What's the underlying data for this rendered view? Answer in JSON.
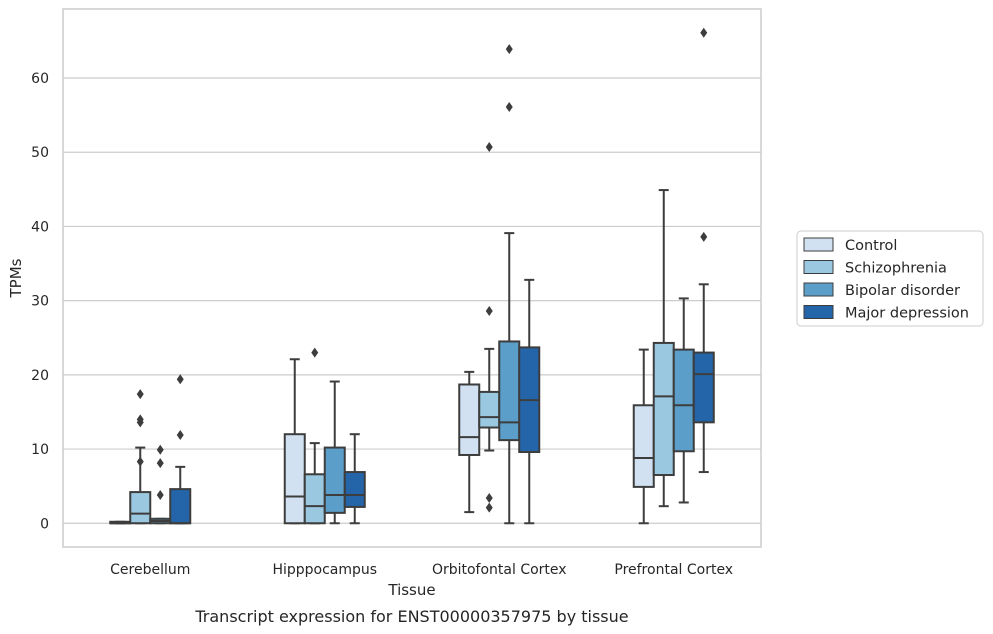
{
  "chart_data": {
    "type": "box",
    "title": "",
    "caption": "Transcript expression for ENST00000357975 by tissue",
    "xlabel": "Tissue",
    "ylabel": "TPMs",
    "ylim": [
      -3.2,
      69.3
    ],
    "yticks": [
      0,
      10,
      20,
      30,
      40,
      50,
      60
    ],
    "grid": true,
    "legend_position": "right",
    "categories": [
      "Cerebellum",
      "Hipppocampus",
      "Orbitofontal Cortex",
      "Prefrontal Cortex"
    ],
    "series": [
      {
        "name": "Control",
        "color": "#d1e1f1",
        "boxes": [
          {
            "whislo": 0,
            "q1": 0,
            "med": 0,
            "q3": 0.2,
            "whishi": 0.2,
            "fliers": []
          },
          {
            "whislo": 0,
            "q1": 0,
            "med": 3.6,
            "q3": 12.0,
            "whishi": 22.1,
            "fliers": []
          },
          {
            "whislo": 1.5,
            "q1": 9.2,
            "med": 11.6,
            "q3": 18.7,
            "whishi": 20.4,
            "fliers": []
          },
          {
            "whislo": 0,
            "q1": 4.9,
            "med": 8.8,
            "q3": 15.9,
            "whishi": 23.4,
            "fliers": []
          }
        ]
      },
      {
        "name": "Schizophrenia",
        "color": "#9ac8e0",
        "boxes": [
          {
            "whislo": 0,
            "q1": 0,
            "med": 1.3,
            "q3": 4.2,
            "whishi": 10.2,
            "fliers": [
              13.6,
              14.0,
              17.4,
              8.3
            ]
          },
          {
            "whislo": 0,
            "q1": 0,
            "med": 2.3,
            "q3": 6.6,
            "whishi": 10.8,
            "fliers": [
              23.0
            ]
          },
          {
            "whislo": 9.8,
            "q1": 12.9,
            "med": 14.3,
            "q3": 17.7,
            "whishi": 23.5,
            "fliers": [
              28.6,
              50.7,
              3.4,
              2.1
            ]
          },
          {
            "whislo": 2.3,
            "q1": 6.5,
            "med": 17.1,
            "q3": 24.3,
            "whishi": 44.9,
            "fliers": []
          }
        ]
      },
      {
        "name": "Bipolar disorder",
        "color": "#5a9ec9",
        "boxes": [
          {
            "whislo": 0,
            "q1": 0,
            "med": 0.3,
            "q3": 0.6,
            "whishi": 0.6,
            "fliers": [
              9.9,
              8.1,
              3.8
            ]
          },
          {
            "whislo": 0,
            "q1": 1.4,
            "med": 3.8,
            "q3": 10.2,
            "whishi": 19.1,
            "fliers": []
          },
          {
            "whislo": 0,
            "q1": 11.2,
            "med": 13.6,
            "q3": 24.5,
            "whishi": 39.1,
            "fliers": [
              63.9,
              56.1
            ]
          },
          {
            "whislo": 2.8,
            "q1": 9.7,
            "med": 15.9,
            "q3": 23.4,
            "whishi": 30.3,
            "fliers": []
          }
        ]
      },
      {
        "name": "Major depression",
        "color": "#2465a9",
        "boxes": [
          {
            "whislo": 0,
            "q1": 0,
            "med": 0,
            "q3": 4.6,
            "whishi": 7.6,
            "fliers": [
              11.9,
              19.4
            ]
          },
          {
            "whislo": 0,
            "q1": 2.2,
            "med": 3.8,
            "q3": 6.9,
            "whishi": 12.0,
            "fliers": []
          },
          {
            "whislo": 0,
            "q1": 9.6,
            "med": 16.6,
            "q3": 23.7,
            "whishi": 32.8,
            "fliers": []
          },
          {
            "whislo": 6.9,
            "q1": 13.6,
            "med": 20.1,
            "q3": 23.0,
            "whishi": 32.2,
            "fliers": [
              38.6,
              66.1
            ]
          }
        ]
      }
    ]
  }
}
